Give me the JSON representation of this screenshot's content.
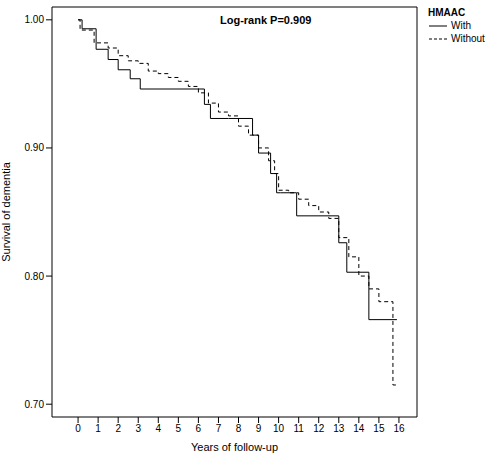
{
  "chart_data": {
    "type": "line",
    "annotation": "Log-rank P=0.909",
    "legend_title": "HMAAC",
    "x_label": "Years of follow-up",
    "y_label": "Survival of dementia",
    "xlim": [
      -1.3,
      16.9
    ],
    "xticks": [
      0,
      1,
      2,
      3,
      4,
      5,
      6,
      7,
      8,
      9,
      10,
      11,
      12,
      13,
      14,
      15,
      16
    ],
    "ylim": [
      0.69,
      1.01
    ],
    "yticks": [
      {
        "value": 0.7,
        "label": "0.70"
      },
      {
        "value": 0.8,
        "label": "0.80"
      },
      {
        "value": 0.9,
        "label": "0.90"
      },
      {
        "value": 1.0,
        "label": "1.00"
      }
    ],
    "legend": "upper right",
    "series": [
      {
        "name": "With",
        "color": "#000000",
        "line_style": "solid",
        "x": [
          0,
          0.2,
          0.9,
          1.5,
          2.0,
          2.6,
          3.1,
          6.3,
          6.6,
          7.5,
          8.7,
          9.0,
          9.6,
          9.9,
          10.1,
          10.9,
          13.0,
          13.4,
          14.5,
          15.9
        ],
        "values": [
          1.0,
          0.993,
          0.977,
          0.969,
          0.961,
          0.954,
          0.946,
          0.934,
          0.923,
          0.923,
          0.91,
          0.896,
          0.88,
          0.865,
          0.865,
          0.847,
          0.826,
          0.803,
          0.766,
          0.766
        ]
      },
      {
        "name": "Without",
        "color": "#000000",
        "line_style": "dashed",
        "x": [
          0,
          0.1,
          0.8,
          1.5,
          2.0,
          2.5,
          3.0,
          3.5,
          4.0,
          4.5,
          5.0,
          5.5,
          6.0,
          6.5,
          7.0,
          7.5,
          8.0,
          8.5,
          9.0,
          9.5,
          9.8,
          10.0,
          10.5,
          11.0,
          11.5,
          12.0,
          12.5,
          13.0,
          13.5,
          14.0,
          14.5,
          15.0,
          15.7,
          15.9
        ],
        "values": [
          1.0,
          0.992,
          0.982,
          0.978,
          0.972,
          0.968,
          0.966,
          0.96,
          0.958,
          0.955,
          0.952,
          0.948,
          0.943,
          0.935,
          0.928,
          0.925,
          0.917,
          0.91,
          0.9,
          0.89,
          0.88,
          0.867,
          0.865,
          0.86,
          0.855,
          0.85,
          0.845,
          0.83,
          0.815,
          0.8,
          0.79,
          0.78,
          0.715,
          0.715
        ]
      }
    ]
  }
}
